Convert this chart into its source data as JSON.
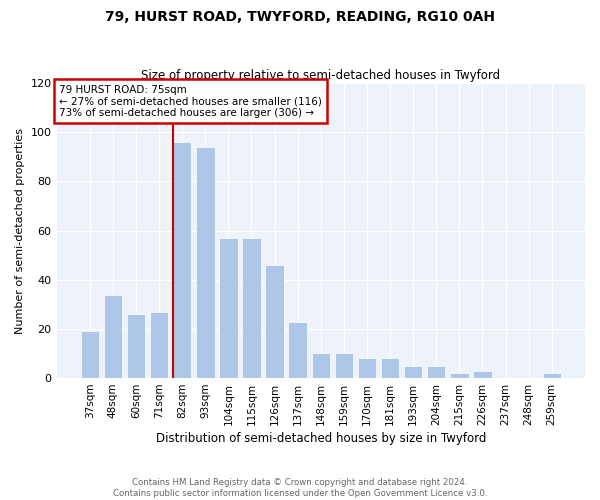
{
  "title1": "79, HURST ROAD, TWYFORD, READING, RG10 0AH",
  "title2": "Size of property relative to semi-detached houses in Twyford",
  "xlabel": "Distribution of semi-detached houses by size in Twyford",
  "ylabel": "Number of semi-detached properties",
  "categories": [
    "37sqm",
    "48sqm",
    "60sqm",
    "71sqm",
    "82sqm",
    "93sqm",
    "104sqm",
    "115sqm",
    "126sqm",
    "137sqm",
    "148sqm",
    "159sqm",
    "170sqm",
    "181sqm",
    "193sqm",
    "204sqm",
    "215sqm",
    "226sqm",
    "237sqm",
    "248sqm",
    "259sqm"
  ],
  "heights": [
    19,
    34,
    26,
    27,
    96,
    94,
    57,
    57,
    46,
    23,
    10,
    10,
    8,
    8,
    5,
    5,
    2,
    3,
    0,
    0,
    2
  ],
  "annotation_title": "79 HURST ROAD: 75sqm",
  "annotation_line1": "← 27% of semi-detached houses are smaller (116)",
  "annotation_line2": "73% of semi-detached houses are larger (306) →",
  "bar_color": "#aec6e8",
  "line_color": "#cc0000",
  "annotation_box_edge_color": "#cc0000",
  "footer1": "Contains HM Land Registry data © Crown copyright and database right 2024.",
  "footer2": "Contains public sector information licensed under the Open Government Licence v3.0.",
  "ylim": [
    0,
    120
  ],
  "yticks": [
    0,
    20,
    40,
    60,
    80,
    100,
    120
  ],
  "background_color": "#eef2f9",
  "grid_color": "#ffffff"
}
